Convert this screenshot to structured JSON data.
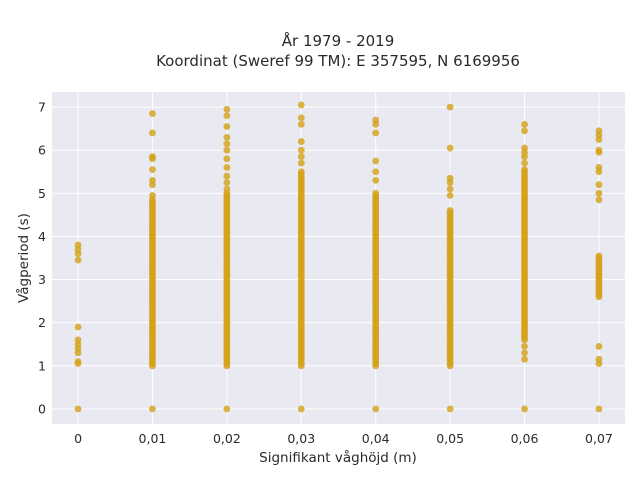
{
  "chart_data": {
    "type": "scatter",
    "title": "År 1979 - 2019",
    "subtitle": "Koordinat (Sweref 99 TM): E 357595, N 6169956",
    "xlabel": "Signifikant våghöjd (m)",
    "ylabel": "Vågperiod (s)",
    "x_tick_labels": [
      "0",
      "0,01",
      "0,02",
      "0,03",
      "0,04",
      "0,05",
      "0,06",
      "0,07"
    ],
    "y_tick_labels": [
      "0",
      "1",
      "2",
      "3",
      "4",
      "5",
      "6",
      "7"
    ],
    "xlim": [
      -0.0035,
      0.0735
    ],
    "ylim": [
      -0.35,
      7.35
    ],
    "grid": true,
    "legend": "none",
    "colors": {
      "point": "#d4a21a",
      "background": "#e9e9f1",
      "grid": "#ffffff"
    },
    "series": [
      {
        "x": 0.0,
        "y": [
          0,
          1.05,
          1.1,
          1.3,
          1.4,
          1.5,
          1.6,
          1.9,
          3.45,
          3.6,
          3.7,
          3.8
        ]
      },
      {
        "x": 0.01,
        "y": [
          0,
          6.85,
          6.4,
          5.85,
          5.8,
          5.55,
          5.3,
          5.2,
          4.95
        ]
      },
      {
        "x": 0.02,
        "y": [
          0,
          6.95,
          6.8,
          6.55,
          6.3,
          6.15,
          6.0,
          5.8,
          5.6,
          5.4,
          5.25,
          5.1
        ]
      },
      {
        "x": 0.03,
        "y": [
          0,
          7.05,
          6.75,
          6.6,
          6.2,
          6.0,
          5.85,
          5.7,
          5.5
        ]
      },
      {
        "x": 0.04,
        "y": [
          0,
          6.7,
          6.6,
          6.4,
          5.75,
          5.5,
          5.3,
          5.0
        ]
      },
      {
        "x": 0.05,
        "y": [
          0,
          7.0,
          6.05,
          5.35,
          5.25,
          5.1,
          4.95
        ]
      },
      {
        "x": 0.06,
        "y": [
          0,
          6.6,
          6.45,
          6.05,
          5.95,
          5.85,
          5.7,
          1.45,
          1.3,
          1.15
        ]
      },
      {
        "x": 0.07,
        "y": [
          0,
          6.45,
          6.35,
          6.25,
          6.0,
          5.95,
          5.6,
          5.5,
          5.2,
          5.0,
          4.85,
          1.45,
          1.05,
          1.15
        ]
      }
    ],
    "dense_ranges": [
      {
        "x": 0.01,
        "from": 1.0,
        "to": 4.85
      },
      {
        "x": 0.02,
        "from": 1.0,
        "to": 5.0
      },
      {
        "x": 0.03,
        "from": 1.0,
        "to": 5.45
      },
      {
        "x": 0.04,
        "from": 1.0,
        "to": 4.95
      },
      {
        "x": 0.05,
        "from": 1.0,
        "to": 4.6
      },
      {
        "x": 0.06,
        "from": 1.6,
        "to": 5.55
      },
      {
        "x": 0.07,
        "from": 2.6,
        "to": 3.55
      }
    ]
  }
}
